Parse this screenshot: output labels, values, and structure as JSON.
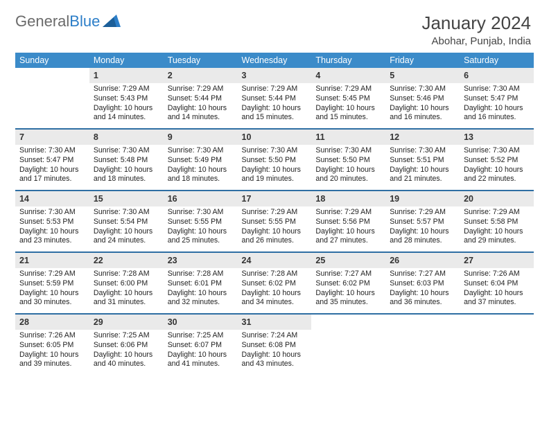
{
  "brand": {
    "text1": "General",
    "text2": "Blue",
    "color1": "#6a6a6a",
    "color2": "#2c7ec8"
  },
  "title": "January 2024",
  "subtitle": "Abohar, Punjab, India",
  "palette": {
    "header_bg": "#3b8bc9",
    "header_text": "#ffffff",
    "daynum_bg": "#eaeaea",
    "divider": "#2e6ea3",
    "text": "#222222"
  },
  "typography": {
    "title_fontsize": 26,
    "subtitle_fontsize": 15,
    "header_fontsize": 12.5,
    "cell_fontsize": 10.6
  },
  "columns": [
    "Sunday",
    "Monday",
    "Tuesday",
    "Wednesday",
    "Thursday",
    "Friday",
    "Saturday"
  ],
  "weeks": [
    [
      null,
      {
        "n": "1",
        "sr": "Sunrise: 7:29 AM",
        "ss": "Sunset: 5:43 PM",
        "d1": "Daylight: 10 hours",
        "d2": "and 14 minutes."
      },
      {
        "n": "2",
        "sr": "Sunrise: 7:29 AM",
        "ss": "Sunset: 5:44 PM",
        "d1": "Daylight: 10 hours",
        "d2": "and 14 minutes."
      },
      {
        "n": "3",
        "sr": "Sunrise: 7:29 AM",
        "ss": "Sunset: 5:44 PM",
        "d1": "Daylight: 10 hours",
        "d2": "and 15 minutes."
      },
      {
        "n": "4",
        "sr": "Sunrise: 7:29 AM",
        "ss": "Sunset: 5:45 PM",
        "d1": "Daylight: 10 hours",
        "d2": "and 15 minutes."
      },
      {
        "n": "5",
        "sr": "Sunrise: 7:30 AM",
        "ss": "Sunset: 5:46 PM",
        "d1": "Daylight: 10 hours",
        "d2": "and 16 minutes."
      },
      {
        "n": "6",
        "sr": "Sunrise: 7:30 AM",
        "ss": "Sunset: 5:47 PM",
        "d1": "Daylight: 10 hours",
        "d2": "and 16 minutes."
      }
    ],
    [
      {
        "n": "7",
        "sr": "Sunrise: 7:30 AM",
        "ss": "Sunset: 5:47 PM",
        "d1": "Daylight: 10 hours",
        "d2": "and 17 minutes."
      },
      {
        "n": "8",
        "sr": "Sunrise: 7:30 AM",
        "ss": "Sunset: 5:48 PM",
        "d1": "Daylight: 10 hours",
        "d2": "and 18 minutes."
      },
      {
        "n": "9",
        "sr": "Sunrise: 7:30 AM",
        "ss": "Sunset: 5:49 PM",
        "d1": "Daylight: 10 hours",
        "d2": "and 18 minutes."
      },
      {
        "n": "10",
        "sr": "Sunrise: 7:30 AM",
        "ss": "Sunset: 5:50 PM",
        "d1": "Daylight: 10 hours",
        "d2": "and 19 minutes."
      },
      {
        "n": "11",
        "sr": "Sunrise: 7:30 AM",
        "ss": "Sunset: 5:50 PM",
        "d1": "Daylight: 10 hours",
        "d2": "and 20 minutes."
      },
      {
        "n": "12",
        "sr": "Sunrise: 7:30 AM",
        "ss": "Sunset: 5:51 PM",
        "d1": "Daylight: 10 hours",
        "d2": "and 21 minutes."
      },
      {
        "n": "13",
        "sr": "Sunrise: 7:30 AM",
        "ss": "Sunset: 5:52 PM",
        "d1": "Daylight: 10 hours",
        "d2": "and 22 minutes."
      }
    ],
    [
      {
        "n": "14",
        "sr": "Sunrise: 7:30 AM",
        "ss": "Sunset: 5:53 PM",
        "d1": "Daylight: 10 hours",
        "d2": "and 23 minutes."
      },
      {
        "n": "15",
        "sr": "Sunrise: 7:30 AM",
        "ss": "Sunset: 5:54 PM",
        "d1": "Daylight: 10 hours",
        "d2": "and 24 minutes."
      },
      {
        "n": "16",
        "sr": "Sunrise: 7:30 AM",
        "ss": "Sunset: 5:55 PM",
        "d1": "Daylight: 10 hours",
        "d2": "and 25 minutes."
      },
      {
        "n": "17",
        "sr": "Sunrise: 7:29 AM",
        "ss": "Sunset: 5:55 PM",
        "d1": "Daylight: 10 hours",
        "d2": "and 26 minutes."
      },
      {
        "n": "18",
        "sr": "Sunrise: 7:29 AM",
        "ss": "Sunset: 5:56 PM",
        "d1": "Daylight: 10 hours",
        "d2": "and 27 minutes."
      },
      {
        "n": "19",
        "sr": "Sunrise: 7:29 AM",
        "ss": "Sunset: 5:57 PM",
        "d1": "Daylight: 10 hours",
        "d2": "and 28 minutes."
      },
      {
        "n": "20",
        "sr": "Sunrise: 7:29 AM",
        "ss": "Sunset: 5:58 PM",
        "d1": "Daylight: 10 hours",
        "d2": "and 29 minutes."
      }
    ],
    [
      {
        "n": "21",
        "sr": "Sunrise: 7:29 AM",
        "ss": "Sunset: 5:59 PM",
        "d1": "Daylight: 10 hours",
        "d2": "and 30 minutes."
      },
      {
        "n": "22",
        "sr": "Sunrise: 7:28 AM",
        "ss": "Sunset: 6:00 PM",
        "d1": "Daylight: 10 hours",
        "d2": "and 31 minutes."
      },
      {
        "n": "23",
        "sr": "Sunrise: 7:28 AM",
        "ss": "Sunset: 6:01 PM",
        "d1": "Daylight: 10 hours",
        "d2": "and 32 minutes."
      },
      {
        "n": "24",
        "sr": "Sunrise: 7:28 AM",
        "ss": "Sunset: 6:02 PM",
        "d1": "Daylight: 10 hours",
        "d2": "and 34 minutes."
      },
      {
        "n": "25",
        "sr": "Sunrise: 7:27 AM",
        "ss": "Sunset: 6:02 PM",
        "d1": "Daylight: 10 hours",
        "d2": "and 35 minutes."
      },
      {
        "n": "26",
        "sr": "Sunrise: 7:27 AM",
        "ss": "Sunset: 6:03 PM",
        "d1": "Daylight: 10 hours",
        "d2": "and 36 minutes."
      },
      {
        "n": "27",
        "sr": "Sunrise: 7:26 AM",
        "ss": "Sunset: 6:04 PM",
        "d1": "Daylight: 10 hours",
        "d2": "and 37 minutes."
      }
    ],
    [
      {
        "n": "28",
        "sr": "Sunrise: 7:26 AM",
        "ss": "Sunset: 6:05 PM",
        "d1": "Daylight: 10 hours",
        "d2": "and 39 minutes."
      },
      {
        "n": "29",
        "sr": "Sunrise: 7:25 AM",
        "ss": "Sunset: 6:06 PM",
        "d1": "Daylight: 10 hours",
        "d2": "and 40 minutes."
      },
      {
        "n": "30",
        "sr": "Sunrise: 7:25 AM",
        "ss": "Sunset: 6:07 PM",
        "d1": "Daylight: 10 hours",
        "d2": "and 41 minutes."
      },
      {
        "n": "31",
        "sr": "Sunrise: 7:24 AM",
        "ss": "Sunset: 6:08 PM",
        "d1": "Daylight: 10 hours",
        "d2": "and 43 minutes."
      },
      null,
      null,
      null
    ]
  ]
}
